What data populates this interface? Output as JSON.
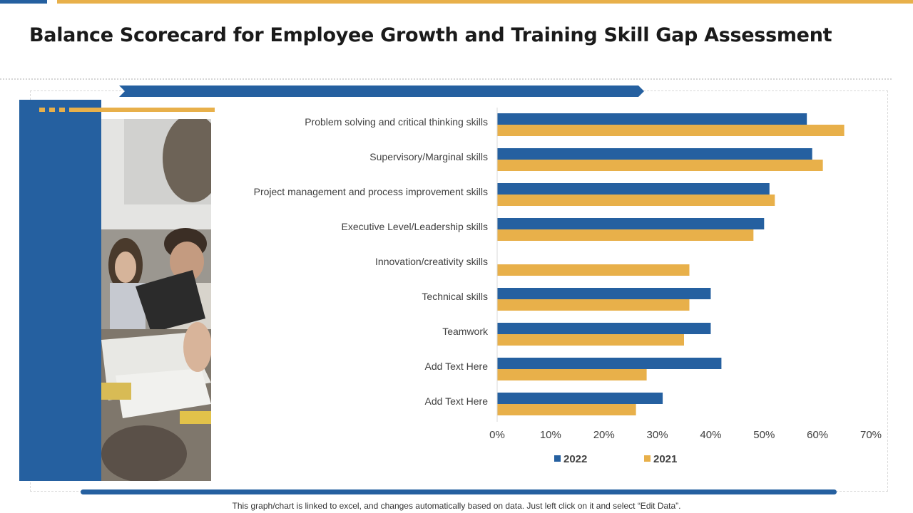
{
  "title": "Balance Scorecard for Employee Growth and Training Skill Gap Assessment",
  "footnote": "This graph/chart is linked to excel, and changes automatically based on data. Just left click on it and select “Edit Data”.",
  "colors": {
    "blue": "#2560a0",
    "gold": "#e8b04a"
  },
  "chart_data": {
    "type": "bar",
    "orientation": "horizontal",
    "categories": [
      "Problem solving and critical thinking skills",
      "Supervisory/Marginal  skills",
      "Project management and process improvement skills",
      "Executive Level/Leadership skills",
      "Innovation/creativity  skills",
      "Technical skills",
      "Teamwork",
      "Add Text Here",
      "Add Text Here"
    ],
    "series": [
      {
        "name": "2022",
        "color": "#2560a0",
        "values": [
          58,
          59,
          51,
          50,
          0,
          40,
          40,
          42,
          31
        ]
      },
      {
        "name": "2021",
        "color": "#e8b04a",
        "values": [
          65,
          61,
          52,
          48,
          36,
          36,
          35,
          28,
          26
        ]
      }
    ],
    "xlim": [
      0,
      70
    ],
    "xticks": [
      "0%",
      "10%",
      "20%",
      "30%",
      "40%",
      "50%",
      "60%",
      "70%"
    ],
    "grid": false,
    "legend_position": "bottom"
  }
}
